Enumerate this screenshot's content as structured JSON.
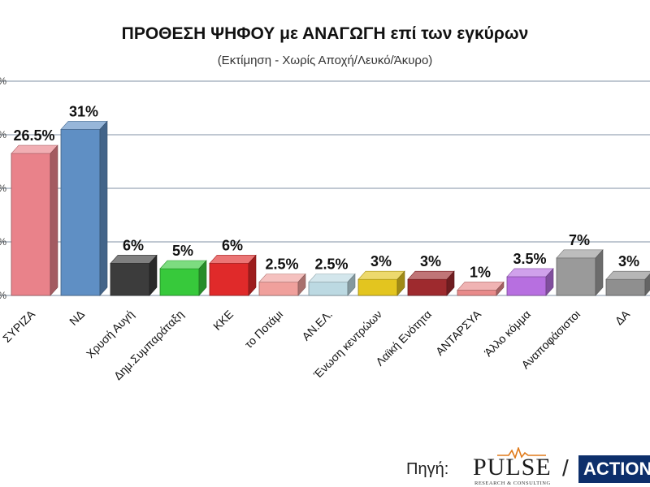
{
  "chart_data": {
    "type": "bar",
    "title": "ΠΡΟΘΕΣΗ ΨΗΦΟΥ με ΑΝΑΓΩΓΗ επί των εγκύρων",
    "subtitle": "(Εκτίμηση  -  Χωρίς Αποχή/Λευκό/Άκυρο)",
    "categories": [
      "ΣΥΡΙΖΑ",
      "ΝΔ",
      "Χρυσή Αυγή",
      "Δημ.Συμπαράταξη",
      "ΚΚΕ",
      "το Ποτάμι",
      "ΑΝ.ΕΛ.",
      "Ένωση κεντρώων",
      "Λαϊκή Ενότητα",
      "ΑΝΤΑΡΣΥΑ",
      "Άλλο κόμμα",
      "Αναποφάσιστοι",
      "ΔΑ"
    ],
    "values": [
      26.5,
      31,
      6,
      5,
      6,
      2.5,
      2.5,
      3,
      3,
      1,
      3.5,
      7,
      3
    ],
    "value_labels": [
      "26.5%",
      "31%",
      "6%",
      "5%",
      "6%",
      "2.5%",
      "2.5%",
      "3%",
      "3%",
      "1%",
      "3.5%",
      "7%",
      "3%"
    ],
    "colors": [
      "#e9828a",
      "#5f8fc4",
      "#3c3c3c",
      "#37c93b",
      "#e02a2a",
      "#f0a09c",
      "#bcd9e2",
      "#e3c51f",
      "#9e2a2e",
      "#e88a8a",
      "#b76fe0",
      "#9a9a9a",
      "#8f8f8f"
    ],
    "ylim": [
      0,
      40
    ],
    "yticks": [
      0,
      10,
      20,
      30,
      40
    ],
    "ytick_labels": [
      "%",
      "%",
      "%",
      "%",
      "%"
    ],
    "grid": true
  },
  "source": {
    "label": "Πηγή:",
    "pulse_name": "PULSE",
    "pulse_tagline": "RESEARCH & CONSULTING",
    "separator": "/",
    "action_name": "ACTION"
  }
}
